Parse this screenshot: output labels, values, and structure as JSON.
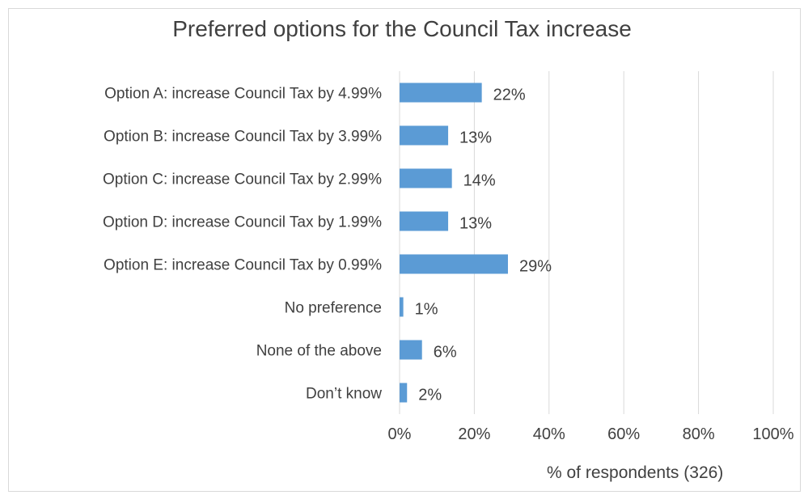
{
  "chart_data": {
    "type": "bar",
    "orientation": "horizontal",
    "title": "Preferred options for the Council Tax  increase",
    "xlabel": "% of respondents (326)",
    "ylabel": "",
    "categories": [
      "Option A: increase Council Tax by 4.99%",
      "Option B: increase Council Tax by 3.99%",
      "Option C: increase Council Tax by 2.99%",
      "Option D: increase Council Tax by 1.99%",
      "Option E: increase Council Tax by 0.99%",
      "No preference",
      "None of the above",
      "Don’t know"
    ],
    "values": [
      22,
      13,
      14,
      13,
      29,
      1,
      6,
      2
    ],
    "value_labels": [
      "22%",
      "13%",
      "14%",
      "13%",
      "29%",
      "1%",
      "6%",
      "2%"
    ],
    "xlim": [
      0,
      100
    ],
    "xticks": [
      0,
      20,
      40,
      60,
      80,
      100
    ],
    "xtick_labels": [
      "0%",
      "20%",
      "40%",
      "60%",
      "80%",
      "100%"
    ],
    "grid": true,
    "legend": "none",
    "bar_color": "#5b9bd5",
    "grid_color": "#d9d9d9"
  }
}
